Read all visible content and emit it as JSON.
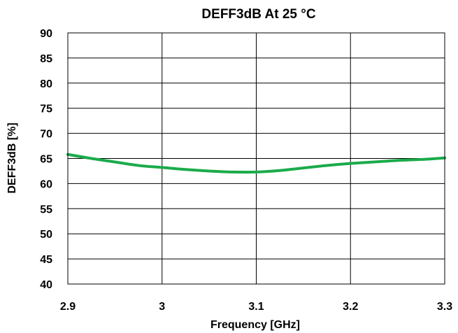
{
  "chart_data": {
    "type": "line",
    "title": "DEFF3dB At 25 °C",
    "xlabel": "Frequency [GHz]",
    "ylabel": "DEFF3dB [%]",
    "xlim": [
      2.9,
      3.3
    ],
    "ylim": [
      40,
      90
    ],
    "xticks": [
      2.9,
      3.0,
      3.1,
      3.2,
      3.3
    ],
    "xtick_labels": [
      "2.9",
      "3",
      "3.1",
      "3.2",
      "3.3"
    ],
    "yticks": [
      40,
      45,
      50,
      55,
      60,
      65,
      70,
      75,
      80,
      85,
      90
    ],
    "ytick_labels": [
      "40",
      "45",
      "50",
      "55",
      "60",
      "65",
      "70",
      "75",
      "80",
      "85",
      "90"
    ],
    "grid": true,
    "series": [
      {
        "color": "#1bab4b",
        "x": [
          2.9,
          2.925,
          2.95,
          2.975,
          3.0,
          3.025,
          3.05,
          3.075,
          3.1,
          3.125,
          3.15,
          3.175,
          3.2,
          3.225,
          3.25,
          3.275,
          3.3
        ],
        "y": [
          65.8,
          65.0,
          64.3,
          63.6,
          63.2,
          62.8,
          62.5,
          62.3,
          62.3,
          62.6,
          63.1,
          63.6,
          64.0,
          64.3,
          64.6,
          64.8,
          65.1
        ]
      }
    ]
  }
}
